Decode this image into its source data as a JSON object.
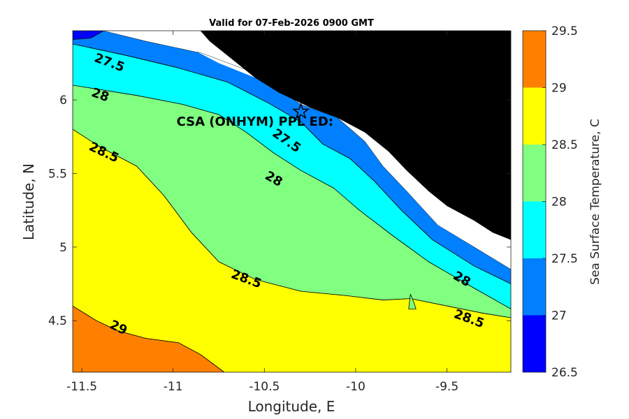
{
  "chart_data": {
    "type": "contour",
    "title": "Valid for 07-Feb-2026 0900 GMT",
    "xlabel": "Longitude, E",
    "ylabel": "Latitude, N",
    "xlim": [
      -11.55,
      -9.15
    ],
    "ylim": [
      4.15,
      6.47
    ],
    "xticks": [
      -11.5,
      -11,
      -10.5,
      -10,
      -9.5
    ],
    "xtick_labels": [
      "-11.5",
      "-11",
      "-10.5",
      "-10",
      "-9.5"
    ],
    "yticks": [
      4.5,
      5,
      5.5,
      6
    ],
    "ytick_labels": [
      "4.5",
      "5",
      "5.5",
      "6"
    ],
    "colorbar": {
      "label": "Sea Surface Temperature, C",
      "levels": [
        26.5,
        27,
        27.5,
        28,
        28.5,
        29,
        29.5
      ],
      "tick_labels": [
        "26.5",
        "27",
        "27.5",
        "28",
        "28.5",
        "29",
        "29.5"
      ],
      "colors": [
        "#0000ff",
        "#0080ff",
        "#00ffff",
        "#80ff80",
        "#ffff00",
        "#ff8000"
      ]
    },
    "land_color": "#000000",
    "nodata_color": "#ffffff",
    "contour_labels": [
      {
        "text": "27.5",
        "lon": -11.35,
        "lat": 6.25,
        "angle": 20
      },
      {
        "text": "28",
        "lon": -11.4,
        "lat": 6.03,
        "angle": 20
      },
      {
        "text": "28.5",
        "lon": -11.38,
        "lat": 5.64,
        "angle": 25
      },
      {
        "text": "29",
        "lon": -11.3,
        "lat": 4.45,
        "angle": 25
      },
      {
        "text": "27.5",
        "lon": -10.38,
        "lat": 5.72,
        "angle": 35
      },
      {
        "text": "28",
        "lon": -10.45,
        "lat": 5.46,
        "angle": 30
      },
      {
        "text": "28.5",
        "lon": -10.6,
        "lat": 4.78,
        "angle": 20
      },
      {
        "text": "28",
        "lon": -9.42,
        "lat": 4.78,
        "angle": 30
      },
      {
        "text": "28.5",
        "lon": -9.38,
        "lat": 4.51,
        "angle": 20
      }
    ],
    "site": {
      "name": "CSA (ONHYM) PPL ED:",
      "marker": "pentagram",
      "lon": -10.3,
      "lat": 5.92
    },
    "bands": [
      {
        "level": "27-27.5",
        "color": "#0080ff",
        "polygon": [
          [
            -11.55,
            6.47
          ],
          [
            -11.38,
            6.47
          ],
          [
            -11.15,
            6.4
          ],
          [
            -10.85,
            6.32
          ],
          [
            -10.55,
            6.18
          ],
          [
            -10.3,
            5.97
          ],
          [
            -10.1,
            5.88
          ],
          [
            -9.95,
            5.72
          ],
          [
            -9.85,
            5.55
          ],
          [
            -9.72,
            5.38
          ],
          [
            -9.55,
            5.15
          ],
          [
            -9.35,
            5.0
          ],
          [
            -9.15,
            4.85
          ],
          [
            -9.15,
            4.75
          ],
          [
            -9.35,
            4.87
          ],
          [
            -9.58,
            5.05
          ],
          [
            -9.75,
            5.25
          ],
          [
            -9.9,
            5.45
          ],
          [
            -10.03,
            5.6
          ],
          [
            -10.18,
            5.7
          ],
          [
            -10.3,
            5.85
          ],
          [
            -10.48,
            5.98
          ],
          [
            -10.7,
            6.12
          ],
          [
            -10.98,
            6.22
          ],
          [
            -11.25,
            6.3
          ],
          [
            -11.55,
            6.38
          ]
        ]
      },
      {
        "level": "27.5-28",
        "color": "#00ffff",
        "polygon": [
          [
            -11.55,
            6.38
          ],
          [
            -11.25,
            6.3
          ],
          [
            -10.98,
            6.22
          ],
          [
            -10.7,
            6.12
          ],
          [
            -10.48,
            5.98
          ],
          [
            -10.3,
            5.85
          ],
          [
            -10.18,
            5.7
          ],
          [
            -10.03,
            5.6
          ],
          [
            -9.9,
            5.45
          ],
          [
            -9.75,
            5.25
          ],
          [
            -9.58,
            5.05
          ],
          [
            -9.35,
            4.87
          ],
          [
            -9.15,
            4.75
          ],
          [
            -9.15,
            4.58
          ],
          [
            -9.35,
            4.72
          ],
          [
            -9.6,
            4.9
          ],
          [
            -9.8,
            5.08
          ],
          [
            -9.98,
            5.25
          ],
          [
            -10.12,
            5.4
          ],
          [
            -10.3,
            5.52
          ],
          [
            -10.45,
            5.64
          ],
          [
            -10.6,
            5.78
          ],
          [
            -10.75,
            5.9
          ],
          [
            -10.95,
            5.97
          ],
          [
            -11.2,
            6.03
          ],
          [
            -11.55,
            6.1
          ]
        ]
      },
      {
        "level": "28-28.5",
        "color": "#80ff80",
        "polygon": [
          [
            -11.55,
            6.1
          ],
          [
            -11.2,
            6.03
          ],
          [
            -10.95,
            5.97
          ],
          [
            -10.75,
            5.9
          ],
          [
            -10.6,
            5.78
          ],
          [
            -10.45,
            5.64
          ],
          [
            -10.3,
            5.52
          ],
          [
            -10.12,
            5.4
          ],
          [
            -9.98,
            5.25
          ],
          [
            -9.8,
            5.08
          ],
          [
            -9.6,
            4.9
          ],
          [
            -9.35,
            4.72
          ],
          [
            -9.15,
            4.58
          ],
          [
            -9.15,
            4.52
          ],
          [
            -9.3,
            4.55
          ],
          [
            -9.5,
            4.6
          ],
          [
            -9.7,
            4.65
          ],
          [
            -9.85,
            4.64
          ],
          [
            -10.05,
            4.67
          ],
          [
            -10.3,
            4.7
          ],
          [
            -10.55,
            4.78
          ],
          [
            -10.75,
            4.9
          ],
          [
            -10.9,
            5.1
          ],
          [
            -11.05,
            5.35
          ],
          [
            -11.2,
            5.55
          ],
          [
            -11.4,
            5.68
          ],
          [
            -11.55,
            5.8
          ]
        ]
      },
      {
        "level": "28.5-29",
        "color": "#ffff00",
        "polygon": [
          [
            -11.55,
            5.8
          ],
          [
            -11.4,
            5.68
          ],
          [
            -11.2,
            5.55
          ],
          [
            -11.05,
            5.35
          ],
          [
            -10.9,
            5.1
          ],
          [
            -10.75,
            4.9
          ],
          [
            -10.55,
            4.78
          ],
          [
            -10.3,
            4.7
          ],
          [
            -10.05,
            4.67
          ],
          [
            -9.85,
            4.64
          ],
          [
            -9.7,
            4.65
          ],
          [
            -9.5,
            4.6
          ],
          [
            -9.3,
            4.55
          ],
          [
            -9.15,
            4.52
          ],
          [
            -9.15,
            4.15
          ],
          [
            -10.72,
            4.15
          ],
          [
            -10.85,
            4.27
          ],
          [
            -10.97,
            4.35
          ],
          [
            -11.15,
            4.38
          ],
          [
            -11.3,
            4.43
          ],
          [
            -11.42,
            4.5
          ],
          [
            -11.55,
            4.6
          ]
        ]
      },
      {
        "level": "29-29.5",
        "color": "#ff8000",
        "polygon": [
          [
            -11.55,
            4.6
          ],
          [
            -11.42,
            4.5
          ],
          [
            -11.3,
            4.43
          ],
          [
            -11.15,
            4.38
          ],
          [
            -10.97,
            4.35
          ],
          [
            -10.85,
            4.27
          ],
          [
            -10.72,
            4.15
          ],
          [
            -11.55,
            4.15
          ]
        ]
      },
      {
        "level": "26.5-27",
        "color": "#0000ff",
        "polygon": [
          [
            -11.55,
            6.47
          ],
          [
            -11.38,
            6.47
          ],
          [
            -11.45,
            6.42
          ],
          [
            -11.55,
            6.41
          ]
        ]
      },
      {
        "level": "26.5-27",
        "color": "#0000ff",
        "polygon": [
          [
            -9.95,
            5.76
          ],
          [
            -9.85,
            5.6
          ],
          [
            -9.82,
            5.58
          ],
          [
            -9.9,
            5.72
          ]
        ]
      },
      {
        "level": "26.5-27",
        "color": "#0000ff",
        "polygon": [
          [
            -9.73,
            5.45
          ],
          [
            -9.67,
            5.5
          ],
          [
            -9.62,
            5.43
          ],
          [
            -9.68,
            5.38
          ]
        ]
      },
      {
        "level": "28-28.5",
        "color": "#80ff80",
        "polygon": [
          [
            -9.7,
            4.68
          ],
          [
            -9.68,
            4.62
          ],
          [
            -9.67,
            4.58
          ],
          [
            -9.71,
            4.58
          ]
        ]
      }
    ],
    "nodata_regions": [
      {
        "polygon": [
          [
            -11.38,
            6.47
          ],
          [
            -11.1,
            6.47
          ],
          [
            -10.95,
            6.38
          ],
          [
            -10.75,
            6.25
          ],
          [
            -10.55,
            6.15
          ],
          [
            -10.35,
            6.05
          ],
          [
            -10.15,
            5.98
          ],
          [
            -9.95,
            5.9
          ],
          [
            -9.85,
            5.75
          ],
          [
            -9.75,
            5.62
          ],
          [
            -9.62,
            5.52
          ],
          [
            -9.55,
            5.38
          ],
          [
            -9.45,
            5.2
          ],
          [
            -9.32,
            5.05
          ],
          [
            -9.15,
            4.95
          ],
          [
            -9.15,
            4.85
          ],
          [
            -9.35,
            5.0
          ],
          [
            -9.55,
            5.15
          ],
          [
            -9.72,
            5.38
          ],
          [
            -9.85,
            5.55
          ],
          [
            -9.95,
            5.72
          ],
          [
            -10.1,
            5.88
          ],
          [
            -10.3,
            5.97
          ],
          [
            -10.55,
            6.18
          ],
          [
            -10.85,
            6.32
          ],
          [
            -11.15,
            6.4
          ]
        ]
      }
    ],
    "land_regions": [
      {
        "polygon": [
          [
            -10.85,
            6.47
          ],
          [
            -9.15,
            6.47
          ],
          [
            -9.15,
            5.05
          ],
          [
            -9.25,
            5.1
          ],
          [
            -9.35,
            5.18
          ],
          [
            -9.5,
            5.28
          ],
          [
            -9.6,
            5.38
          ],
          [
            -9.72,
            5.52
          ],
          [
            -9.82,
            5.65
          ],
          [
            -9.95,
            5.78
          ],
          [
            -10.1,
            5.88
          ],
          [
            -10.25,
            5.95
          ],
          [
            -10.42,
            6.05
          ],
          [
            -10.55,
            6.15
          ],
          [
            -10.68,
            6.28
          ],
          [
            -10.8,
            6.4
          ]
        ]
      }
    ]
  }
}
